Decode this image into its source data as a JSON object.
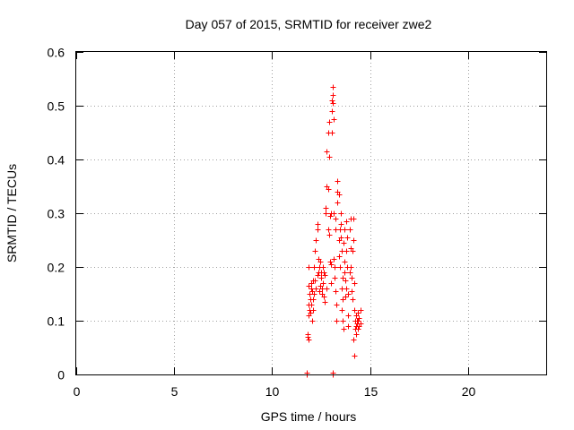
{
  "chart_data": {
    "type": "scatter",
    "title": "Day 057 of 2015, SRMTID for receiver zwe2",
    "xlabel": "GPS time / hours",
    "ylabel": "SRMTID / TECUs",
    "xlim": [
      0,
      24
    ],
    "ylim": [
      0,
      0.6
    ],
    "xticks": [
      0,
      5,
      10,
      15,
      20
    ],
    "xtick_labels": [
      "0",
      "5",
      "10",
      "15",
      "20"
    ],
    "yticks": [
      0,
      0.1,
      0.2,
      0.3,
      0.4,
      0.5,
      0.6
    ],
    "ytick_labels": [
      "0",
      "0.1",
      "0.2",
      "0.3",
      "0.4",
      "0.5",
      "0.6"
    ],
    "grid": true,
    "marker": "+",
    "series": [
      {
        "name": "zwe2",
        "color": "#ff0000",
        "points": [
          [
            11.75,
            0.0
          ],
          [
            11.75,
            0.003
          ],
          [
            13.1,
            0.0
          ],
          [
            13.1,
            0.003
          ],
          [
            11.8,
            0.07
          ],
          [
            11.8,
            0.075
          ],
          [
            11.85,
            0.065
          ],
          [
            11.85,
            0.11
          ],
          [
            11.85,
            0.13
          ],
          [
            11.85,
            0.165
          ],
          [
            11.85,
            0.2
          ],
          [
            11.9,
            0.12
          ],
          [
            11.9,
            0.15
          ],
          [
            11.95,
            0.115
          ],
          [
            11.95,
            0.14
          ],
          [
            12.0,
            0.13
          ],
          [
            12.0,
            0.16
          ],
          [
            12.0,
            0.17
          ],
          [
            12.05,
            0.1
          ],
          [
            12.05,
            0.155
          ],
          [
            12.1,
            0.12
          ],
          [
            12.1,
            0.14
          ],
          [
            12.1,
            0.175
          ],
          [
            12.15,
            0.15
          ],
          [
            12.15,
            0.2
          ],
          [
            12.2,
            0.175
          ],
          [
            12.2,
            0.23
          ],
          [
            12.25,
            0.16
          ],
          [
            12.25,
            0.25
          ],
          [
            12.3,
            0.185
          ],
          [
            12.3,
            0.27
          ],
          [
            12.3,
            0.28
          ],
          [
            12.35,
            0.19
          ],
          [
            12.35,
            0.215
          ],
          [
            12.4,
            0.155
          ],
          [
            12.4,
            0.2
          ],
          [
            12.45,
            0.165
          ],
          [
            12.45,
            0.21
          ],
          [
            12.5,
            0.18
          ],
          [
            12.5,
            0.19
          ],
          [
            12.55,
            0.15
          ],
          [
            12.55,
            0.16
          ],
          [
            12.6,
            0.17
          ],
          [
            12.6,
            0.2
          ],
          [
            12.65,
            0.145
          ],
          [
            12.65,
            0.19
          ],
          [
            12.7,
            0.135
          ],
          [
            12.7,
            0.185
          ],
          [
            12.75,
            0.3
          ],
          [
            12.75,
            0.31
          ],
          [
            12.8,
            0.35
          ],
          [
            12.8,
            0.16
          ],
          [
            12.8,
            0.415
          ],
          [
            12.85,
            0.27
          ],
          [
            12.85,
            0.345
          ],
          [
            12.85,
            0.45
          ],
          [
            12.9,
            0.26
          ],
          [
            12.9,
            0.47
          ],
          [
            12.9,
            0.405
          ],
          [
            12.95,
            0.295
          ],
          [
            12.95,
            0.21
          ],
          [
            13.0,
            0.3
          ],
          [
            13.0,
            0.205
          ],
          [
            13.0,
            0.17
          ],
          [
            13.05,
            0.45
          ],
          [
            13.05,
            0.49
          ],
          [
            13.05,
            0.51
          ],
          [
            13.1,
            0.535
          ],
          [
            13.1,
            0.52
          ],
          [
            13.1,
            0.505
          ],
          [
            13.15,
            0.475
          ],
          [
            13.15,
            0.3
          ],
          [
            13.15,
            0.215
          ],
          [
            13.2,
            0.2
          ],
          [
            13.2,
            0.18
          ],
          [
            13.25,
            0.29
          ],
          [
            13.25,
            0.27
          ],
          [
            13.25,
            0.155
          ],
          [
            13.3,
            0.13
          ],
          [
            13.3,
            0.1
          ],
          [
            13.35,
            0.36
          ],
          [
            13.35,
            0.34
          ],
          [
            13.35,
            0.32
          ],
          [
            13.4,
            0.335
          ],
          [
            13.4,
            0.25
          ],
          [
            13.4,
            0.22
          ],
          [
            13.45,
            0.2
          ],
          [
            13.45,
            0.27
          ],
          [
            13.5,
            0.3
          ],
          [
            13.5,
            0.28
          ],
          [
            13.5,
            0.255
          ],
          [
            13.55,
            0.23
          ],
          [
            13.55,
            0.16
          ],
          [
            13.55,
            0.12
          ],
          [
            13.6,
            0.14
          ],
          [
            13.6,
            0.18
          ],
          [
            13.6,
            0.1
          ],
          [
            13.65,
            0.085
          ],
          [
            13.65,
            0.245
          ],
          [
            13.7,
            0.27
          ],
          [
            13.7,
            0.21
          ],
          [
            13.7,
            0.19
          ],
          [
            13.75,
            0.175
          ],
          [
            13.75,
            0.145
          ],
          [
            13.8,
            0.16
          ],
          [
            13.8,
            0.23
          ],
          [
            13.8,
            0.285
          ],
          [
            13.85,
            0.255
          ],
          [
            13.85,
            0.2
          ],
          [
            13.9,
            0.15
          ],
          [
            13.9,
            0.11
          ],
          [
            13.9,
            0.09
          ],
          [
            13.95,
            0.19
          ],
          [
            13.95,
            0.27
          ],
          [
            14.0,
            0.29
          ],
          [
            14.0,
            0.235
          ],
          [
            14.0,
            0.2
          ],
          [
            14.05,
            0.18
          ],
          [
            14.05,
            0.155
          ],
          [
            14.1,
            0.14
          ],
          [
            14.1,
            0.23
          ],
          [
            14.15,
            0.29
          ],
          [
            14.15,
            0.25
          ],
          [
            14.15,
            0.065
          ],
          [
            14.2,
            0.035
          ],
          [
            14.2,
            0.12
          ],
          [
            14.2,
            0.17
          ],
          [
            14.25,
            0.1
          ],
          [
            14.25,
            0.085
          ],
          [
            14.3,
            0.075
          ],
          [
            14.3,
            0.09
          ],
          [
            14.3,
            0.11
          ],
          [
            14.35,
            0.1
          ],
          [
            14.35,
            0.095
          ],
          [
            14.4,
            0.115
          ],
          [
            14.4,
            0.085
          ],
          [
            14.4,
            0.1
          ],
          [
            14.45,
            0.09
          ],
          [
            14.45,
            0.105
          ],
          [
            14.5,
            0.095
          ],
          [
            14.5,
            0.12
          ]
        ]
      }
    ]
  }
}
